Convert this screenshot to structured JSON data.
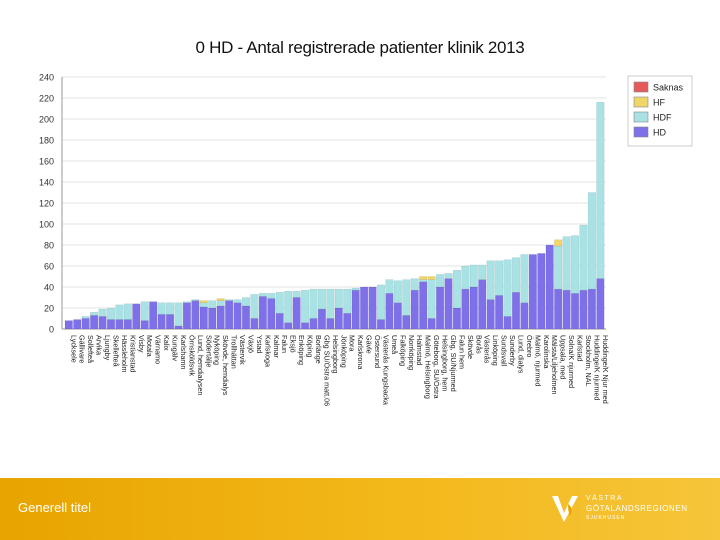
{
  "footer": {
    "title": "Generell titel"
  },
  "logo": {
    "line1": "VÄSTRA",
    "line2": "GÖTALANDSREGIONEN",
    "line3": "SJUKHUSEN"
  },
  "colors": {
    "hd": "#7d70e8",
    "hdf": "#a8e2e4",
    "hf": "#f0d56a",
    "saknas": "#e35b5b",
    "footer": "#f0b010"
  },
  "chart_data": {
    "type": "bar",
    "stacked": true,
    "title": "0  HD - Antal registrerade patienter klinik 2013",
    "xlabel": "",
    "ylabel": "",
    "ylim": [
      0,
      240
    ],
    "yticks": [
      0,
      20,
      40,
      60,
      80,
      100,
      120,
      140,
      160,
      180,
      200,
      220,
      240
    ],
    "legend_position": "top-right",
    "categories": [
      "Lycksele",
      "Gällivare",
      "Sollefteå",
      "Arvika",
      "Ljungby",
      "Skellefteå",
      "Hässleholm",
      "Kristianstad",
      "Visby",
      "Motala",
      "Värnamo",
      "Kalix",
      "Kungälv",
      "Karlshamn",
      "Örnsköldsvik",
      "Lund, hemdialysen",
      "Södertälje",
      "Nyköping",
      "Skövde, hemdialys",
      "Trollhättan",
      "Västervik",
      "Växjö",
      "Ystad",
      "Karlskoga",
      "Kalmar",
      "Falun",
      "Eksjö",
      "Enköping",
      "Köping",
      "Borlänge",
      "Gbg SU/Östra matt.06",
      "Helsingborg",
      "Jönköping",
      "Mora",
      "Karlskrona",
      "Gävle",
      "Östersund",
      "Västerås Kungsbacka",
      "Umeå",
      "Falköping",
      "Norrköping",
      "Halmstad",
      "Malmö, Helsingborg",
      "Göteborg, SU/Östra",
      "Helsingborg, hem",
      "Gbg, SU/Njurmed",
      "Falun hem",
      "Skövde",
      "Borås",
      "Västerås",
      "Linköping",
      "Sundsvall",
      "Sunderby",
      "Lund, dialys",
      "Örebro",
      "Malmö, njurmed",
      "Karolinska",
      "Mälsta/Liljeholmen",
      "Uppsala, med",
      "Solna/K njurmed",
      "Karlstad",
      "Stockholm, NAL",
      "Huddinge/K njurmed",
      "Huddinge/K Njur med"
    ],
    "categories_shown": [
      "Lycksele",
      "Gällivare",
      "Sollefteå",
      "Arvika",
      "Ljungby",
      "Skellefteå",
      "Hässleholm",
      "Kristianstad",
      "Visby",
      "Motala",
      "Värnamo",
      "Kalix",
      "Kungälv",
      "Karlshamn",
      "Örnsköldsvik",
      "Lund, hemdialysen",
      "Södertälje",
      "Nyköping",
      "Skövde, hemdialys",
      "Trollhättan",
      "Västervik",
      "Växjö",
      "Ystad",
      "Karlskoga",
      "Kalmar",
      "Falun",
      "Eksjö",
      "Enköping",
      "Köping",
      "Borlänge",
      "Gbg SU/Östra matt.06",
      "Helsingborg",
      "Jönköping",
      "Mora",
      "Karlskrona",
      "Gävle",
      "Östersund",
      "Västerås Kungsbacka",
      "Umeå",
      "Falköping",
      "Norrköping",
      "Halmstad",
      "Malmö, Helsingborg",
      "Göteborg, SU/Östra",
      "Helsingborg, hem",
      "Gbg, SU/Njurmed",
      "Falun hem",
      "Skövde",
      "Borås",
      "Västerås",
      "Linköping",
      "Sundsvall",
      "Sunderby",
      "Lund, dialys",
      "Örebro",
      "Malmö, njurmed",
      "Karolinska",
      "Mälsta/Liljeholmen",
      "Uppsala, med",
      "Solna/K njurmed",
      "Karlstad",
      "Stockholm, NAL",
      "Huddinge/K njurmed",
      "Huddinge/K Njur med"
    ],
    "series": [
      {
        "name": "HD",
        "values": [
          8,
          9,
          10,
          13,
          12,
          9,
          9,
          9,
          24,
          8,
          26,
          14,
          14,
          3,
          25,
          27,
          21,
          20,
          22,
          27,
          25,
          22,
          10,
          31,
          29,
          15,
          6,
          30,
          6,
          10,
          19,
          10,
          20,
          15,
          37,
          40,
          40,
          9,
          34,
          25,
          13,
          37,
          45,
          10,
          40,
          48,
          20,
          38,
          40,
          47,
          28,
          32,
          12,
          35,
          25,
          71,
          72,
          80,
          38,
          37,
          34,
          37,
          38,
          48
        ]
      },
      {
        "name": "HDF",
        "values": [
          0,
          0,
          2,
          3,
          7,
          11,
          14,
          15,
          0,
          18,
          0,
          11,
          11,
          22,
          1,
          1,
          4,
          7,
          5,
          1,
          3,
          8,
          23,
          3,
          5,
          20,
          30,
          6,
          31,
          28,
          19,
          28,
          18,
          23,
          2,
          0,
          0,
          33,
          13,
          21,
          34,
          11,
          2,
          37,
          12,
          5,
          36,
          22,
          21,
          14,
          37,
          33,
          54,
          33,
          46,
          0,
          0,
          0,
          41,
          51,
          55,
          62,
          92,
          168
        ]
      },
      {
        "name": "HF",
        "values": [
          0,
          0,
          0,
          0,
          0,
          0,
          0,
          0,
          0,
          0,
          0,
          0,
          0,
          0,
          0,
          0,
          2,
          0,
          2,
          0,
          0,
          0,
          0,
          0,
          0,
          0,
          0,
          0,
          0,
          0,
          0,
          0,
          0,
          0,
          0,
          0,
          0,
          0,
          0,
          0,
          0,
          0,
          3,
          3,
          0,
          0,
          0,
          0,
          0,
          0,
          0,
          0,
          0,
          0,
          0,
          0,
          0,
          0,
          6,
          0,
          0,
          0,
          0,
          0
        ]
      },
      {
        "name": "Saknas",
        "values": [
          0,
          0,
          0,
          0,
          0,
          0,
          0,
          0,
          0,
          0,
          0,
          0,
          0,
          0,
          0,
          0,
          0,
          0,
          0,
          0,
          0,
          0,
          0,
          0,
          0,
          0,
          0,
          0,
          0,
          0,
          0,
          0,
          0,
          0,
          0,
          0,
          0,
          0,
          0,
          0,
          0,
          0,
          0,
          0,
          0,
          0,
          0,
          0,
          0,
          0,
          0,
          0,
          0,
          0,
          0,
          0,
          0,
          0,
          0,
          0,
          0,
          0,
          0,
          0
        ]
      }
    ]
  }
}
